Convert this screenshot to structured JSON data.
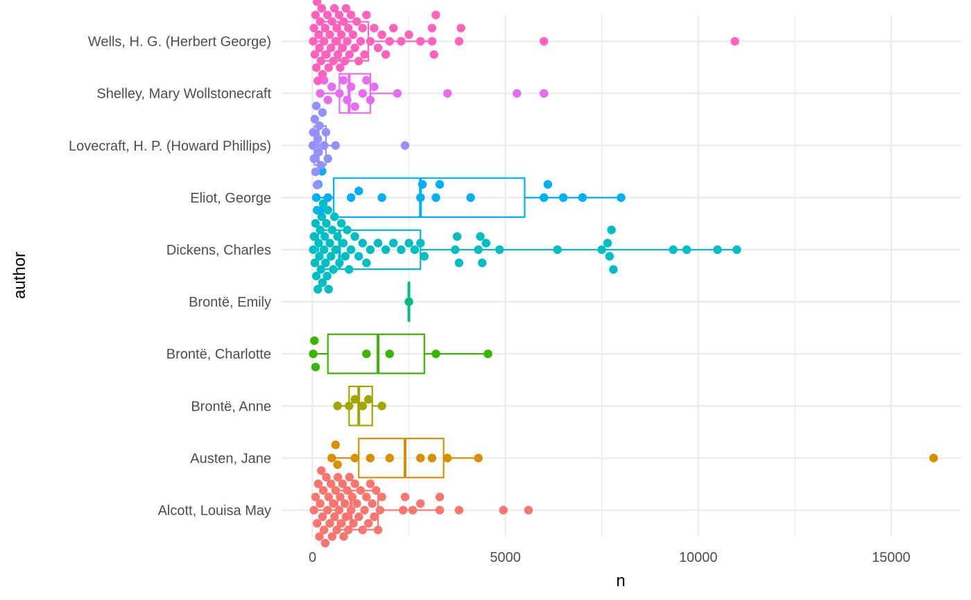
{
  "chart_data": {
    "type": "boxplot",
    "orientation": "horizontal",
    "xlabel": "n",
    "ylabel": "author",
    "xlim": [
      -800,
      16800
    ],
    "xticks": [
      0,
      5000,
      10000,
      15000
    ],
    "grid": true,
    "legend": "none",
    "categories": [
      "Alcott, Louisa May",
      "Austen, Jane",
      "Brontë, Anne",
      "Brontë, Charlotte",
      "Brontë, Emily",
      "Dickens, Charles",
      "Eliot, George",
      "Lovecraft, H. P. (Howard Phillips)",
      "Shelley, Mary Wollstonecraft",
      "Wells, H. G. (Herbert George)"
    ],
    "series": [
      {
        "color": "#F8766D",
        "stats": {
          "min": 0,
          "q1": 650,
          "median": 1000,
          "q3": 1700,
          "max": 3300
        },
        "points": [
          40,
          80,
          120,
          150,
          180,
          200,
          230,
          260,
          280,
          300,
          330,
          360,
          390,
          420,
          450,
          480,
          510,
          540,
          570,
          600,
          630,
          660,
          690,
          720,
          750,
          780,
          810,
          840,
          870,
          900,
          930,
          960,
          1000,
          1030,
          1060,
          1100,
          1150,
          1200,
          1250,
          1300,
          1350,
          1400,
          1450,
          1500,
          1550,
          1600,
          1650,
          1700,
          1750,
          1800,
          2350,
          2400,
          2600,
          2800,
          3300,
          3300,
          3800,
          4950,
          5600
        ]
      },
      {
        "color": "#D89000",
        "stats": {
          "min": 500,
          "q1": 1200,
          "median": 2400,
          "q3": 3400,
          "max": 4300
        },
        "points": [
          500,
          600,
          650,
          1100,
          1500,
          2000,
          2800,
          3100,
          3500,
          4300,
          16100
        ]
      },
      {
        "color": "#A3A500",
        "stats": {
          "min": 650,
          "q1": 950,
          "median": 1200,
          "q3": 1550,
          "max": 1800
        },
        "points": [
          650,
          950,
          1100,
          1300,
          1450,
          1800
        ]
      },
      {
        "color": "#39B600",
        "stats": {
          "min": 0,
          "q1": 400,
          "median": 1700,
          "q3": 2900,
          "max": 4550
        },
        "points": [
          20,
          50,
          80,
          1400,
          2000,
          3200,
          4550
        ]
      },
      {
        "color": "#00BF7D",
        "stats": {
          "min": 2500,
          "q1": 2500,
          "median": 2500,
          "q3": 2500,
          "max": 2500
        },
        "points": [
          2500
        ]
      },
      {
        "color": "#00BFC4",
        "stats": {
          "min": 0,
          "q1": 150,
          "median": 700,
          "q3": 2800,
          "max": 11000
        },
        "points": [
          20,
          40,
          60,
          80,
          100,
          120,
          140,
          160,
          180,
          200,
          220,
          240,
          260,
          280,
          300,
          320,
          340,
          360,
          380,
          400,
          420,
          450,
          480,
          510,
          540,
          570,
          600,
          650,
          700,
          750,
          800,
          850,
          900,
          950,
          1000,
          1100,
          1200,
          1300,
          1400,
          1500,
          1700,
          1900,
          2100,
          2300,
          2500,
          2650,
          2800,
          2900,
          3700,
          3750,
          3800,
          4300,
          4350,
          4400,
          4500,
          4850,
          6350,
          7500,
          7650,
          7700,
          7750,
          7800,
          9350,
          9700,
          10500,
          11000
        ]
      },
      {
        "color": "#00B0F6",
        "stats": {
          "min": 100,
          "q1": 550,
          "median": 2800,
          "q3": 5500,
          "max": 8000
        },
        "points": [
          100,
          150,
          200,
          250,
          400,
          1000,
          1200,
          1800,
          2800,
          2850,
          3200,
          3300,
          4100,
          6000,
          6100,
          6500,
          7000,
          8000
        ]
      },
      {
        "color": "#9590FF",
        "stats": {
          "min": 0,
          "q1": 50,
          "median": 150,
          "q3": 350,
          "max": 600
        },
        "points": [
          10,
          20,
          40,
          60,
          80,
          100,
          120,
          140,
          160,
          180,
          220,
          260,
          300,
          350,
          400,
          600,
          2400
        ]
      },
      {
        "color": "#E76BF3",
        "stats": {
          "min": 200,
          "q1": 700,
          "median": 950,
          "q3": 1500,
          "max": 2200
        },
        "points": [
          200,
          300,
          400,
          500,
          700,
          800,
          900,
          1000,
          1100,
          1300,
          1400,
          1500,
          1600,
          2200,
          3500,
          5300,
          6000
        ]
      },
      {
        "color": "#FF62BC",
        "stats": {
          "min": 0,
          "q1": 250,
          "median": 700,
          "q3": 1450,
          "max": 3200
        },
        "points": [
          20,
          40,
          60,
          80,
          100,
          120,
          140,
          160,
          180,
          200,
          220,
          240,
          260,
          280,
          300,
          330,
          360,
          390,
          420,
          450,
          480,
          510,
          540,
          570,
          600,
          630,
          660,
          690,
          720,
          750,
          780,
          810,
          840,
          870,
          900,
          930,
          960,
          1000,
          1050,
          1100,
          1150,
          1200,
          1250,
          1300,
          1350,
          1400,
          1500,
          1600,
          1700,
          1800,
          1900,
          2000,
          2100,
          2300,
          2500,
          2800,
          3100,
          3100,
          3150,
          3200,
          3800,
          3850,
          6000,
          10950
        ]
      }
    ]
  }
}
